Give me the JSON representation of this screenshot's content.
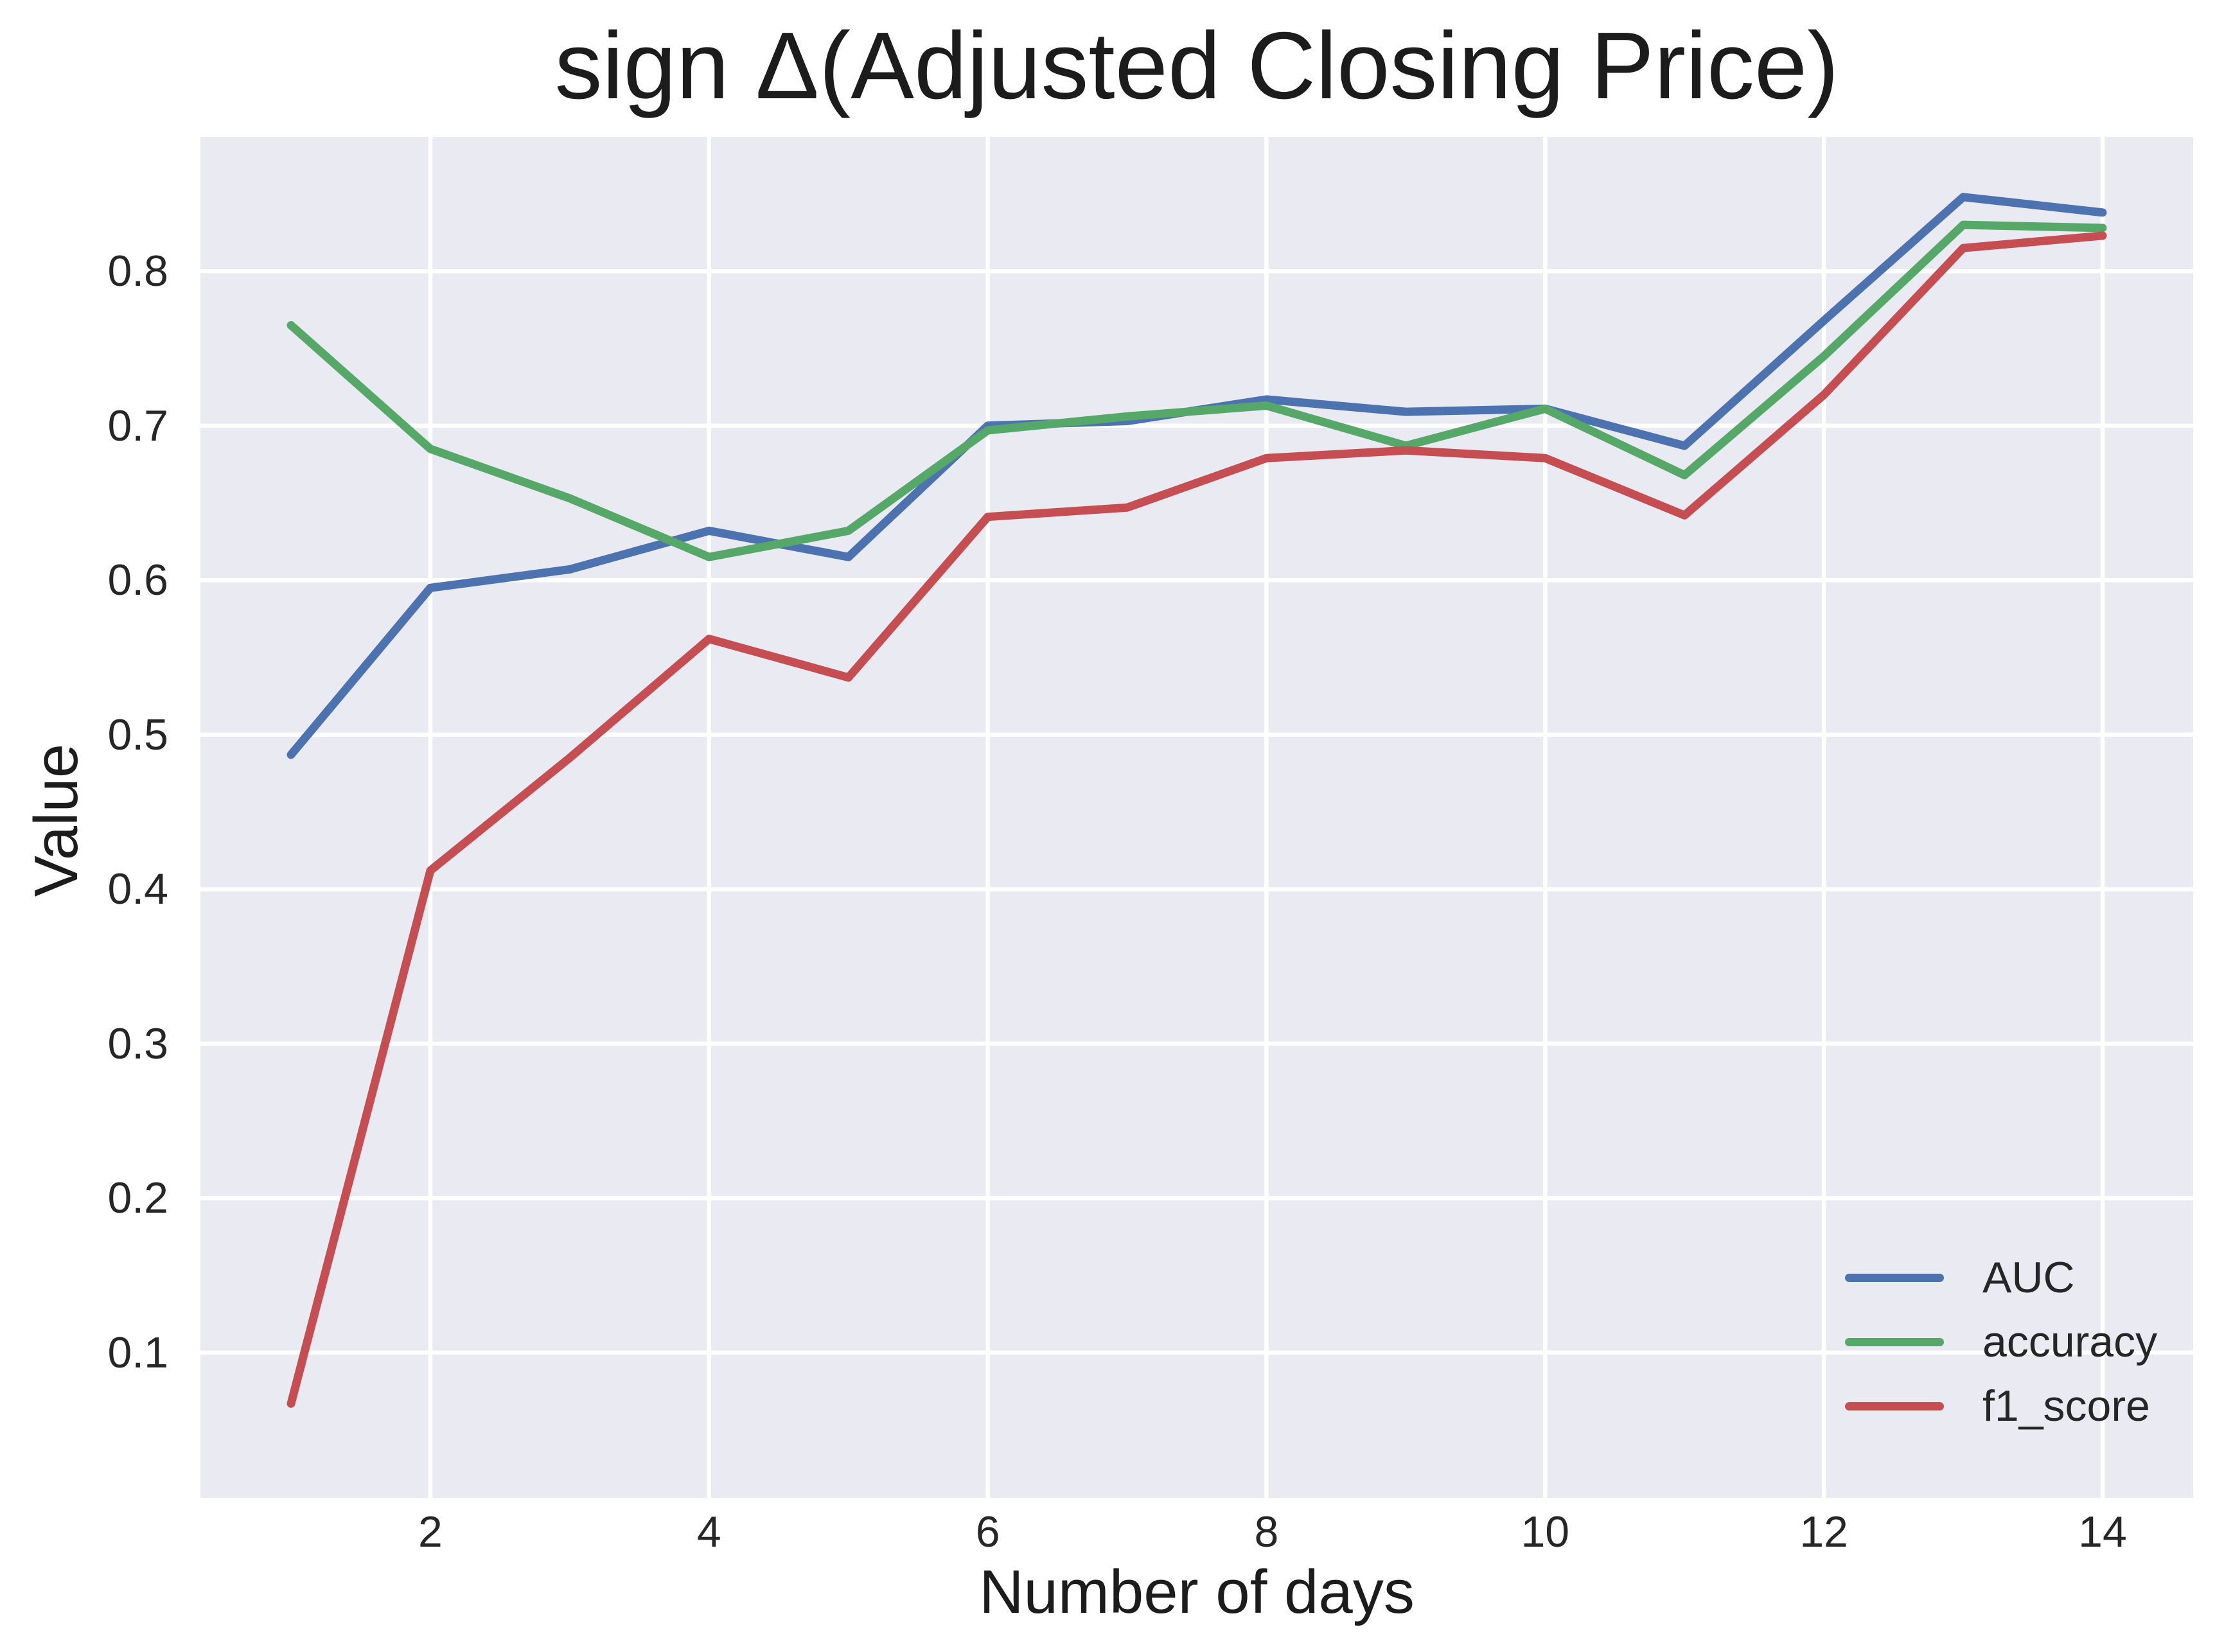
{
  "figure": {
    "background_color": "#FFFFFF",
    "plot_background_color": "#EAEAF2",
    "gridline_color": "#FFFFFF",
    "text_color": "#262626"
  },
  "chart_data": {
    "type": "line",
    "title": "sign Δ(Adjusted Closing Price)",
    "xlabel": "Number of days",
    "ylabel": "Value",
    "x": [
      1,
      2,
      3,
      4,
      5,
      6,
      7,
      8,
      9,
      10,
      11,
      12,
      13,
      14
    ],
    "series": [
      {
        "name": "AUC",
        "color": "#4C72B0",
        "values": [
          0.487,
          0.595,
          0.607,
          0.632,
          0.615,
          0.7,
          0.703,
          0.717,
          0.709,
          0.711,
          0.687,
          0.768,
          0.848,
          0.838
        ]
      },
      {
        "name": "accuracy",
        "color": "#55A868",
        "values": [
          0.765,
          0.685,
          0.653,
          0.615,
          0.632,
          0.697,
          0.706,
          0.713,
          0.687,
          0.711,
          0.668,
          0.745,
          0.83,
          0.828
        ]
      },
      {
        "name": "f1_score",
        "color": "#C44E52",
        "values": [
          0.067,
          0.412,
          0.485,
          0.562,
          0.537,
          0.641,
          0.647,
          0.679,
          0.684,
          0.679,
          0.642,
          0.72,
          0.815,
          0.823
        ]
      }
    ],
    "x_ticks": [
      2,
      4,
      6,
      8,
      10,
      12,
      14
    ],
    "y_ticks": [
      0.1,
      0.2,
      0.3,
      0.4,
      0.5,
      0.6,
      0.7,
      0.8
    ],
    "xlim": [
      0.35,
      14.65
    ],
    "ylim": [
      0.006,
      0.887
    ],
    "grid": true,
    "legend_position": "lower right"
  }
}
